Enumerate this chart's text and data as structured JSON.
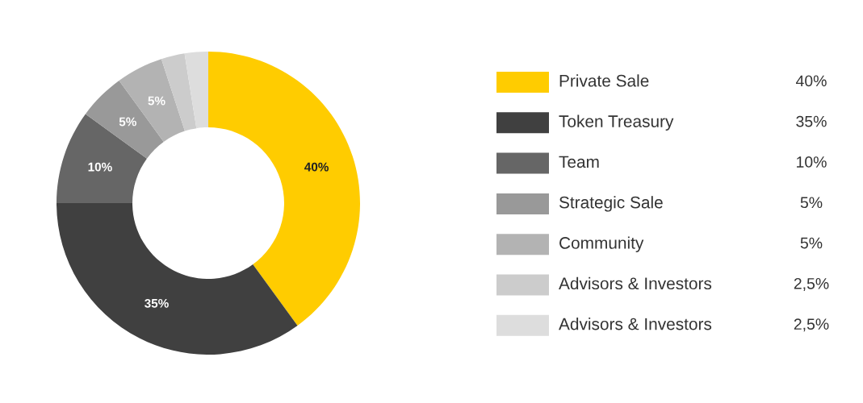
{
  "chart_data": {
    "type": "donut",
    "categories": [
      "Private Sale",
      "Token Treasury",
      "Team",
      "Strategic Sale",
      "Community",
      "Advisors & Investors",
      "Advisors & Investors"
    ],
    "values": [
      40,
      35,
      10,
      5,
      5,
      2.5,
      2.5
    ],
    "colors": [
      "#ffcc00",
      "#404040",
      "#666666",
      "#999999",
      "#b3b3b3",
      "#cccccc",
      "#dddddd"
    ],
    "value_labels": [
      "40%",
      "35%",
      "10%",
      "5%",
      "5%",
      "2,5%",
      "2,5%"
    ],
    "legend": "right"
  }
}
